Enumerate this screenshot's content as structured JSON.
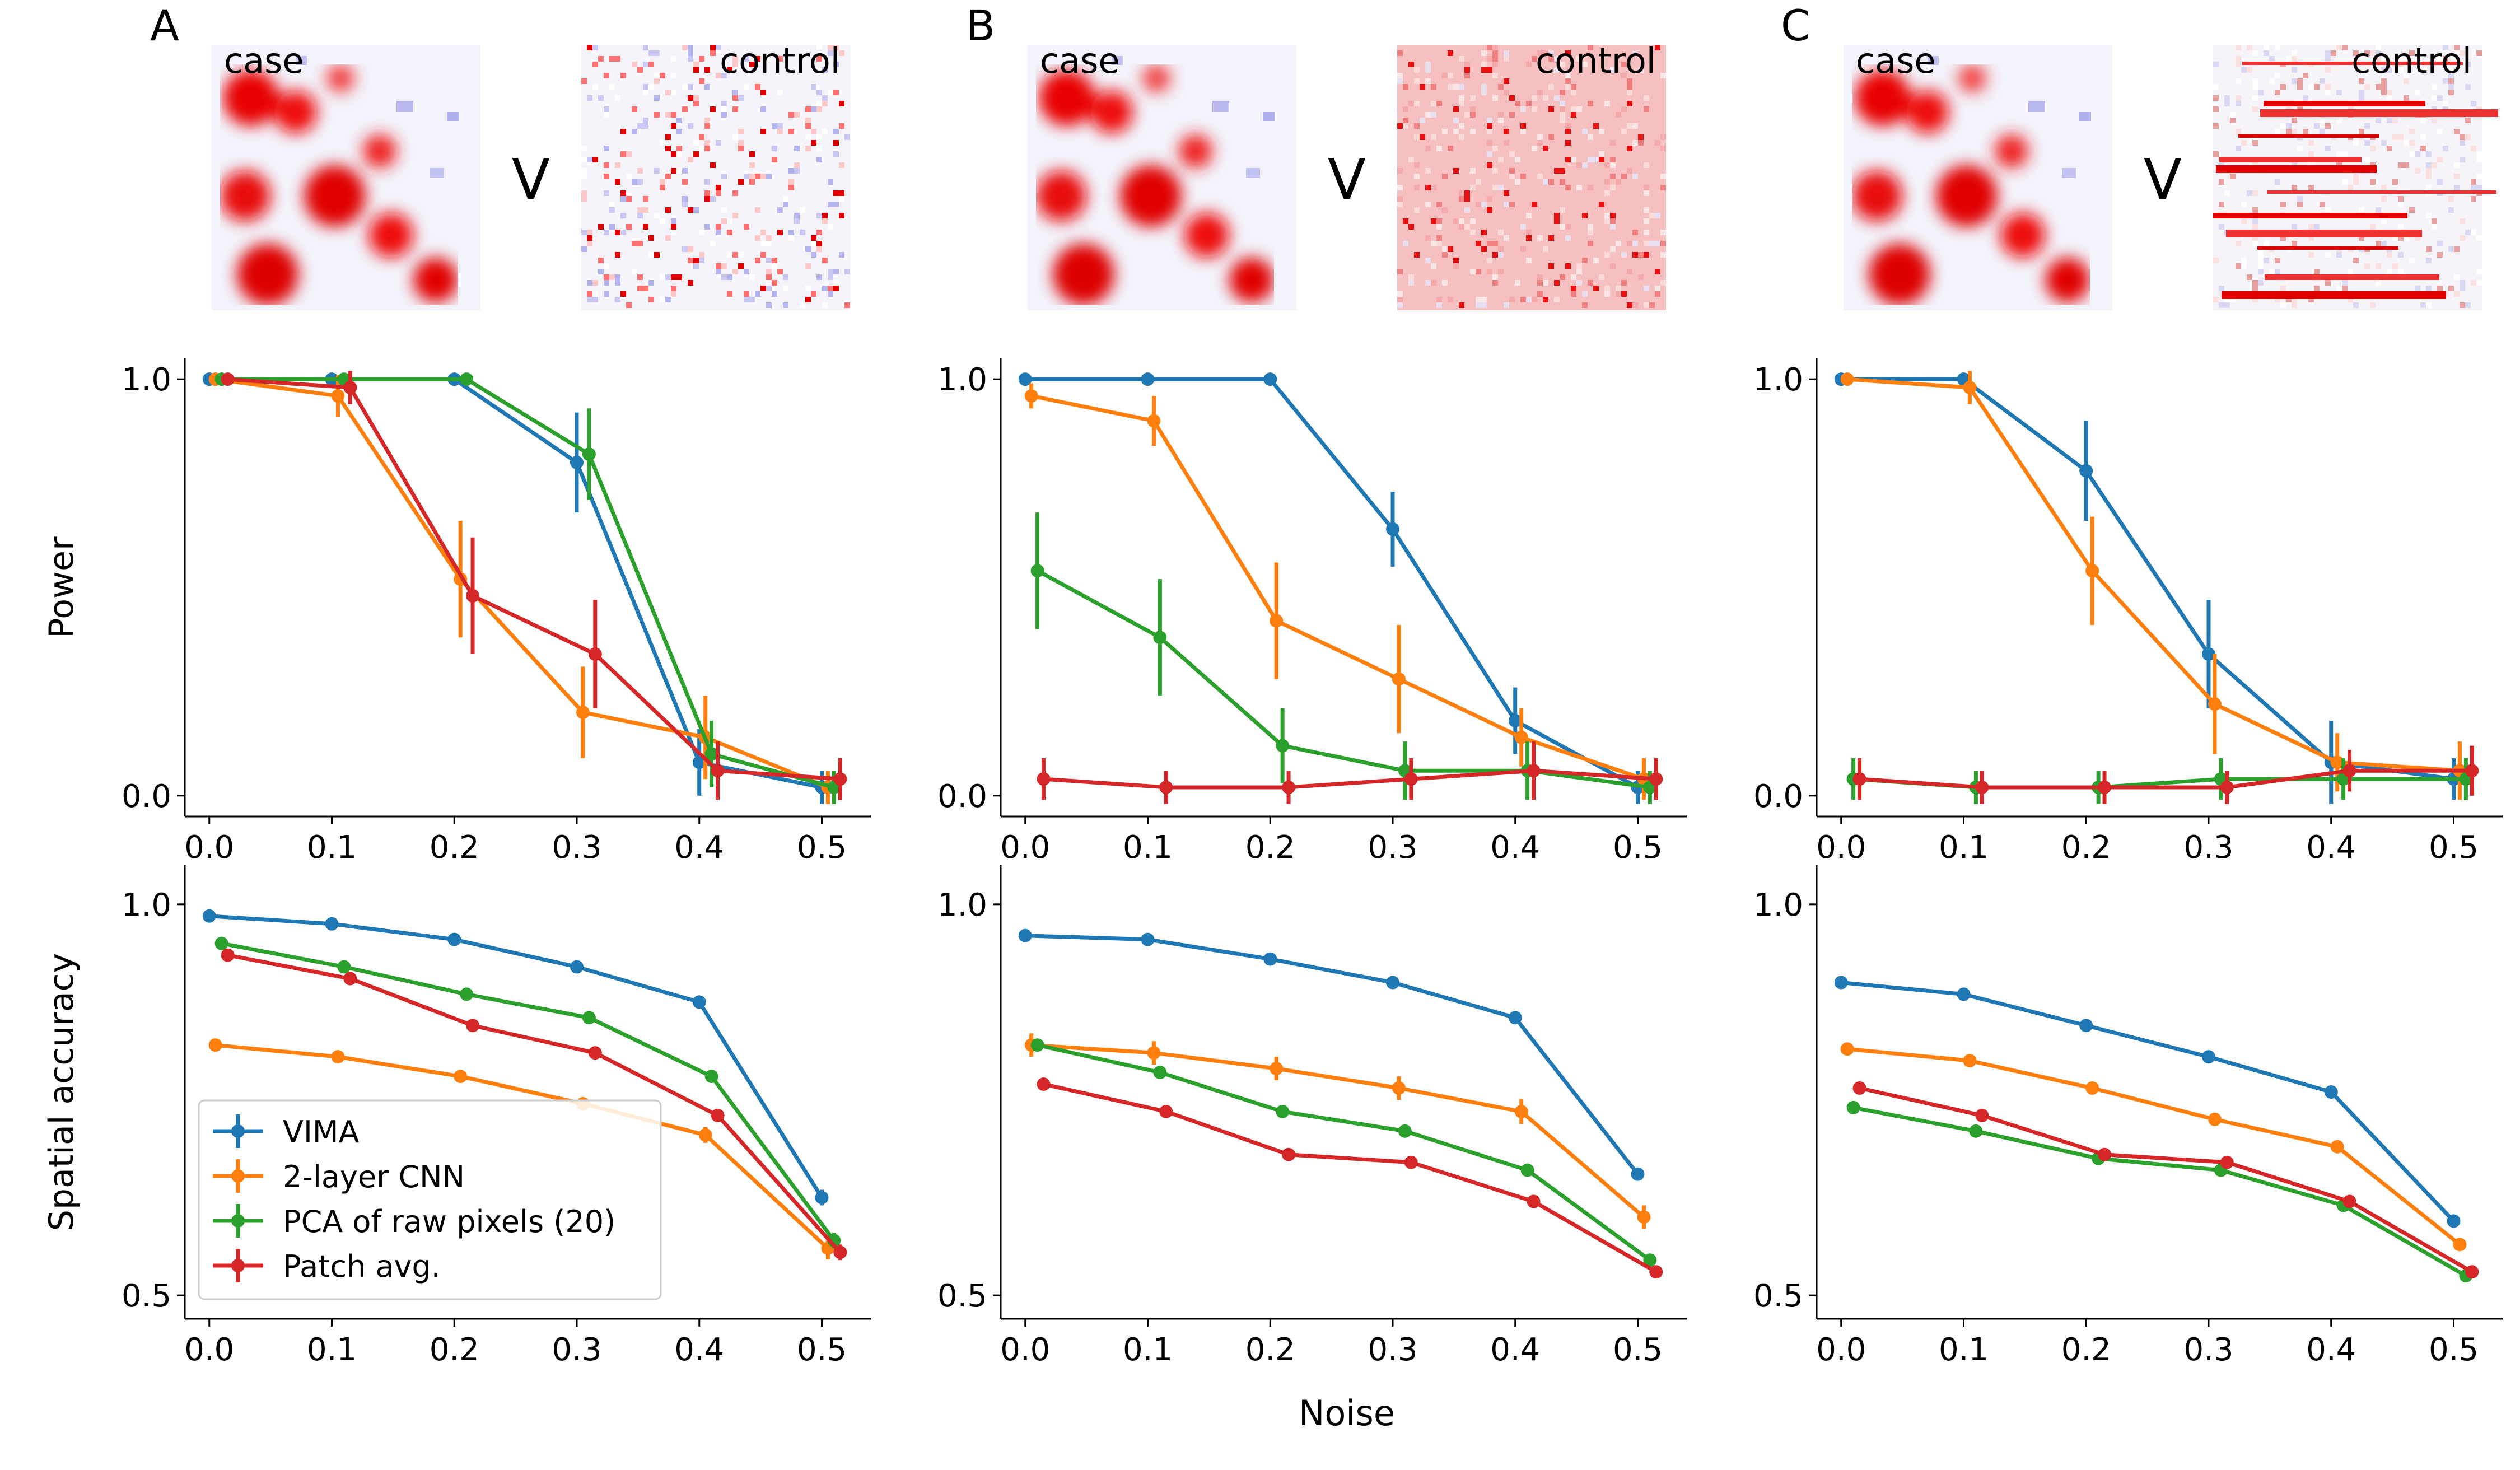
{
  "panels": [
    {
      "letter": "A",
      "case_label": "case",
      "vs_label": "V",
      "control_label": "control"
    },
    {
      "letter": "B",
      "case_label": "case",
      "vs_label": "V",
      "control_label": "control"
    },
    {
      "letter": "C",
      "case_label": "case",
      "vs_label": "V",
      "control_label": "control"
    }
  ],
  "shared_xlabel": "Noise",
  "colors": {
    "VIMA": "#1f77b4",
    "2-layer CNN": "#ff7f0e",
    "PCA of raw pixels (20)": "#2ca02c",
    "Patch avg.": "#d62728"
  },
  "legend": {
    "placement": "lower-left",
    "entries": [
      "VIMA",
      "2-layer CNN",
      "PCA of raw pixels (20)",
      "Patch avg."
    ]
  },
  "chart_data": [
    {
      "type": "line",
      "panel": "A",
      "ylabel": "Power",
      "x": [
        0.0,
        0.1,
        0.2,
        0.3,
        0.4,
        0.5
      ],
      "xlim": [
        -0.02,
        0.54
      ],
      "ylim": [
        -0.05,
        1.05
      ],
      "xticks": [
        "0.0",
        "0.1",
        "0.2",
        "0.3",
        "0.4",
        "0.5"
      ],
      "yticks": [
        "0.0",
        "1.0"
      ],
      "series": [
        {
          "name": "VIMA",
          "values": [
            1.0,
            1.0,
            1.0,
            0.8,
            0.08,
            0.02
          ],
          "err": [
            0,
            0,
            0,
            0.12,
            0.08,
            0.04
          ]
        },
        {
          "name": "2-layer CNN",
          "values": [
            1.0,
            0.96,
            0.52,
            0.2,
            0.14,
            0.02
          ],
          "err": [
            0,
            0.05,
            0.14,
            0.11,
            0.1,
            0.04
          ]
        },
        {
          "name": "PCA of raw pixels (20)",
          "values": [
            1.0,
            1.0,
            1.0,
            0.82,
            0.1,
            0.02
          ],
          "err": [
            0,
            0,
            0,
            0.11,
            0.08,
            0.04
          ]
        },
        {
          "name": "Patch avg.",
          "values": [
            1.0,
            0.98,
            0.48,
            0.34,
            0.06,
            0.04
          ],
          "err": [
            0,
            0.04,
            0.14,
            0.13,
            0.07,
            0.05
          ]
        }
      ]
    },
    {
      "type": "line",
      "panel": "B",
      "ylabel": "",
      "x": [
        0.0,
        0.1,
        0.2,
        0.3,
        0.4,
        0.5
      ],
      "xlim": [
        -0.02,
        0.54
      ],
      "ylim": [
        -0.05,
        1.05
      ],
      "xticks": [
        "0.0",
        "0.1",
        "0.2",
        "0.3",
        "0.4",
        "0.5"
      ],
      "yticks": [
        "0.0",
        "1.0"
      ],
      "series": [
        {
          "name": "VIMA",
          "values": [
            1.0,
            1.0,
            1.0,
            0.64,
            0.18,
            0.02
          ],
          "err": [
            0,
            0,
            0,
            0.09,
            0.08,
            0.04
          ]
        },
        {
          "name": "2-layer CNN",
          "values": [
            0.96,
            0.9,
            0.42,
            0.28,
            0.14,
            0.04
          ],
          "err": [
            0.03,
            0.06,
            0.14,
            0.13,
            0.07,
            0.05
          ]
        },
        {
          "name": "PCA of raw pixels (20)",
          "values": [
            0.54,
            0.38,
            0.12,
            0.06,
            0.06,
            0.02
          ],
          "err": [
            0.14,
            0.14,
            0.09,
            0.07,
            0.07,
            0.04
          ]
        },
        {
          "name": "Patch avg.",
          "values": [
            0.04,
            0.02,
            0.02,
            0.04,
            0.06,
            0.04
          ],
          "err": [
            0.05,
            0.04,
            0.04,
            0.05,
            0.07,
            0.05
          ]
        }
      ]
    },
    {
      "type": "line",
      "panel": "C",
      "ylabel": "",
      "x": [
        0.0,
        0.1,
        0.2,
        0.3,
        0.4,
        0.5
      ],
      "xlim": [
        -0.02,
        0.54
      ],
      "ylim": [
        -0.05,
        1.05
      ],
      "xticks": [
        "0.0",
        "0.1",
        "0.2",
        "0.3",
        "0.4",
        "0.5"
      ],
      "yticks": [
        "0.0",
        "1.0"
      ],
      "series": [
        {
          "name": "VIMA",
          "values": [
            1.0,
            1.0,
            0.78,
            0.34,
            0.08,
            0.04
          ],
          "err": [
            0,
            0,
            0.12,
            0.13,
            0.1,
            0.05
          ]
        },
        {
          "name": "2-layer CNN",
          "values": [
            1.0,
            0.98,
            0.54,
            0.22,
            0.08,
            0.06
          ],
          "err": [
            0,
            0.04,
            0.13,
            0.12,
            0.07,
            0.07
          ]
        },
        {
          "name": "PCA of raw pixels (20)",
          "values": [
            0.04,
            0.02,
            0.02,
            0.04,
            0.04,
            0.04
          ],
          "err": [
            0.05,
            0.04,
            0.04,
            0.05,
            0.05,
            0.05
          ]
        },
        {
          "name": "Patch avg.",
          "values": [
            0.04,
            0.02,
            0.02,
            0.02,
            0.06,
            0.06
          ],
          "err": [
            0.05,
            0.04,
            0.04,
            0.04,
            0.05,
            0.06
          ]
        }
      ]
    },
    {
      "type": "line",
      "panel": "A",
      "ylabel": "Spatial accuracy",
      "x": [
        0.0,
        0.1,
        0.2,
        0.3,
        0.4,
        0.5
      ],
      "xlim": [
        -0.02,
        0.54
      ],
      "ylim": [
        0.47,
        1.05
      ],
      "xticks": [
        "0.0",
        "0.1",
        "0.2",
        "0.3",
        "0.4",
        "0.5"
      ],
      "yticks": [
        "0.5",
        "1.0"
      ],
      "series": [
        {
          "name": "VIMA",
          "values": [
            0.985,
            0.975,
            0.955,
            0.92,
            0.875,
            0.625
          ],
          "err": [
            0.004,
            0.004,
            0.004,
            0.005,
            0.006,
            0.01
          ]
        },
        {
          "name": "2-layer CNN",
          "values": [
            0.82,
            0.805,
            0.78,
            0.745,
            0.705,
            0.56
          ],
          "err": [
            0.005,
            0.005,
            0.006,
            0.008,
            0.01,
            0.014
          ]
        },
        {
          "name": "PCA of raw pixels (20)",
          "values": [
            0.95,
            0.92,
            0.885,
            0.855,
            0.78,
            0.57
          ],
          "err": [
            0.005,
            0.005,
            0.005,
            0.006,
            0.007,
            0.01
          ]
        },
        {
          "name": "Patch avg.",
          "values": [
            0.935,
            0.905,
            0.845,
            0.81,
            0.73,
            0.555
          ],
          "err": [
            0.005,
            0.005,
            0.005,
            0.006,
            0.007,
            0.01
          ]
        }
      ]
    },
    {
      "type": "line",
      "panel": "B",
      "ylabel": "",
      "x": [
        0.0,
        0.1,
        0.2,
        0.3,
        0.4,
        0.5
      ],
      "xlim": [
        -0.02,
        0.54
      ],
      "ylim": [
        0.47,
        1.05
      ],
      "xticks": [
        "0.0",
        "0.1",
        "0.2",
        "0.3",
        "0.4",
        "0.5"
      ],
      "yticks": [
        "0.5",
        "1.0"
      ],
      "series": [
        {
          "name": "VIMA",
          "values": [
            0.96,
            0.955,
            0.93,
            0.9,
            0.855,
            0.655
          ],
          "err": [
            0.004,
            0.004,
            0.005,
            0.005,
            0.006,
            0.008
          ]
        },
        {
          "name": "2-layer CNN",
          "values": [
            0.82,
            0.81,
            0.79,
            0.765,
            0.735,
            0.6
          ],
          "err": [
            0.015,
            0.015,
            0.015,
            0.015,
            0.016,
            0.015
          ]
        },
        {
          "name": "PCA of raw pixels (20)",
          "values": [
            0.82,
            0.785,
            0.735,
            0.71,
            0.66,
            0.545
          ],
          "err": [
            0.006,
            0.006,
            0.006,
            0.007,
            0.007,
            0.008
          ]
        },
        {
          "name": "Patch avg.",
          "values": [
            0.77,
            0.735,
            0.68,
            0.67,
            0.62,
            0.53
          ],
          "err": [
            0.005,
            0.005,
            0.005,
            0.006,
            0.006,
            0.007
          ]
        }
      ]
    },
    {
      "type": "line",
      "panel": "C",
      "ylabel": "",
      "x": [
        0.0,
        0.1,
        0.2,
        0.3,
        0.4,
        0.5
      ],
      "xlim": [
        -0.02,
        0.54
      ],
      "ylim": [
        0.47,
        1.05
      ],
      "xticks": [
        "0.0",
        "0.1",
        "0.2",
        "0.3",
        "0.4",
        "0.5"
      ],
      "yticks": [
        "0.5",
        "1.0"
      ],
      "series": [
        {
          "name": "VIMA",
          "values": [
            0.9,
            0.885,
            0.845,
            0.805,
            0.76,
            0.595
          ],
          "err": [
            0.004,
            0.004,
            0.005,
            0.005,
            0.006,
            0.007
          ]
        },
        {
          "name": "2-layer CNN",
          "values": [
            0.815,
            0.8,
            0.765,
            0.725,
            0.69,
            0.565
          ],
          "err": [
            0.005,
            0.005,
            0.006,
            0.006,
            0.007,
            0.008
          ]
        },
        {
          "name": "PCA of raw pixels (20)",
          "values": [
            0.74,
            0.71,
            0.675,
            0.66,
            0.615,
            0.525
          ],
          "err": [
            0.005,
            0.005,
            0.006,
            0.006,
            0.007,
            0.008
          ]
        },
        {
          "name": "Patch avg.",
          "values": [
            0.765,
            0.73,
            0.68,
            0.67,
            0.62,
            0.53
          ],
          "err": [
            0.005,
            0.005,
            0.006,
            0.006,
            0.007,
            0.008
          ]
        }
      ]
    }
  ]
}
